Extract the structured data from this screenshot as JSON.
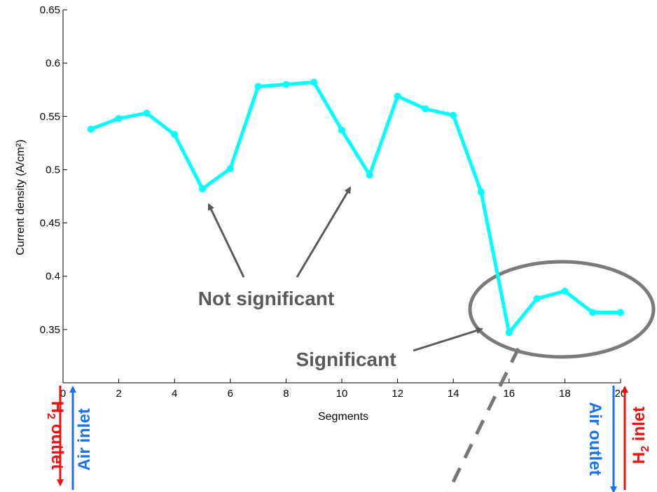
{
  "chart_data": {
    "type": "line",
    "xlabel": "Segments",
    "ylabel": "Current density (A/cm²)",
    "xlim": [
      0,
      20
    ],
    "ylim": [
      0.3,
      0.65
    ],
    "xticks": [
      0,
      2,
      4,
      6,
      8,
      10,
      12,
      14,
      16,
      18,
      20
    ],
    "yticks": [
      0.35,
      0.4,
      0.45,
      0.5,
      0.55,
      0.6,
      0.65
    ],
    "x": [
      1,
      2,
      3,
      4,
      5,
      6,
      7,
      8,
      9,
      10,
      11,
      12,
      13,
      14,
      15,
      16,
      17,
      18,
      19,
      20
    ],
    "series": [
      {
        "color": "#00ffff",
        "values": [
          0.538,
          0.548,
          0.553,
          0.533,
          0.482,
          0.501,
          0.578,
          0.58,
          0.582,
          0.537,
          0.495,
          0.569,
          0.557,
          0.551,
          0.479,
          0.347,
          0.379,
          0.386,
          0.366,
          0.366
        ]
      }
    ],
    "annotations": {
      "not_significant": "Not significant",
      "significant": "Significant"
    },
    "grid": false
  },
  "side_labels": {
    "left_red": "H",
    "left_red_sub": "2",
    "left_red_rest": " outlet",
    "left_blue": "Air inlet",
    "right_blue": "Air outlet",
    "right_red": "H",
    "right_red_sub": "2",
    "right_red_rest": " inlet"
  },
  "colors": {
    "line": "#00ffff",
    "annotation": "#6e6e6e",
    "h2": "#ee1111",
    "air": "#1a73e8"
  }
}
